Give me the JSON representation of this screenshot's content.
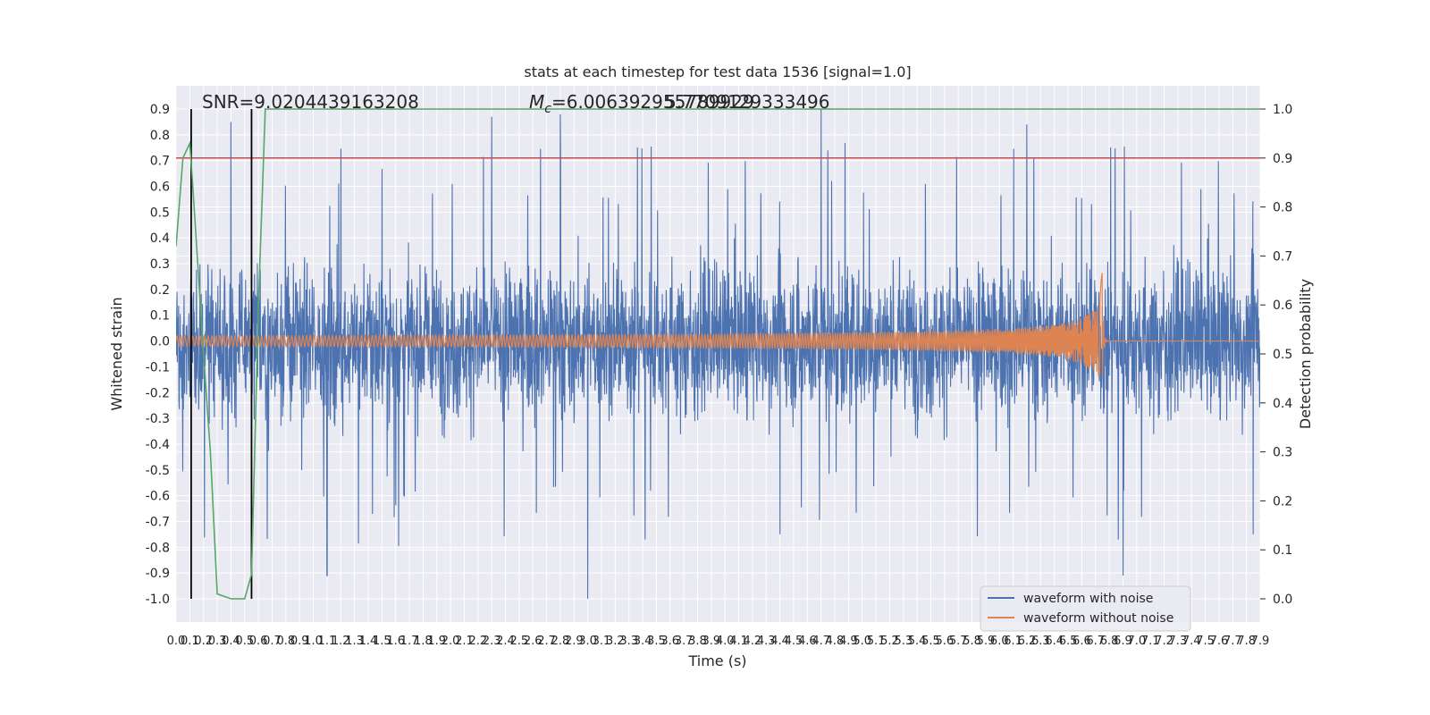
{
  "chart_data": {
    "type": "line",
    "title": "stats at each timestep for test data 1536 [signal=1.0]",
    "xlabel": "Time (s)",
    "ylabel_left": "Whitened strain",
    "ylabel_right": "Detection probability",
    "xlim": [
      0.0,
      7.9
    ],
    "ylim_left": [
      -1.0,
      0.9
    ],
    "ylim_right": [
      0.0,
      1.0
    ],
    "x_ticks": [
      "0.0",
      "0.1",
      "0.2",
      "0.3",
      "0.4",
      "0.5",
      "0.6",
      "0.7",
      "0.8",
      "0.9",
      "1.0",
      "1.1",
      "1.2",
      "1.3",
      "1.4",
      "1.5",
      "1.6",
      "1.7",
      "1.8",
      "1.9",
      "2.0",
      "2.1",
      "2.2",
      "2.3",
      "2.4",
      "2.5",
      "2.6",
      "2.7",
      "2.8",
      "2.9",
      "3.0",
      "3.1",
      "3.2",
      "3.3",
      "3.4",
      "3.5",
      "3.6",
      "3.7",
      "3.8",
      "3.9",
      "4.0",
      "4.1",
      "4.2",
      "4.3",
      "4.4",
      "4.5",
      "4.6",
      "4.7",
      "4.8",
      "4.9",
      "5.0",
      "5.1",
      "5.2",
      "5.3",
      "5.4",
      "5.5",
      "5.6",
      "5.7",
      "5.8",
      "5.9",
      "6.0",
      "6.1",
      "6.2",
      "6.3",
      "6.4",
      "6.5",
      "6.6",
      "6.7",
      "6.8",
      "6.9",
      "7.0",
      "7.1",
      "7.2",
      "7.3",
      "7.4",
      "7.5",
      "7.6",
      "7.7",
      "7.8",
      "7.9"
    ],
    "y_ticks_left": [
      "0.9",
      "0.8",
      "0.7",
      "0.6",
      "0.5",
      "0.4",
      "0.3",
      "0.2",
      "0.1",
      "0.0",
      "-0.1",
      "-0.2",
      "-0.3",
      "-0.4",
      "-0.5",
      "-0.6",
      "-0.7",
      "-0.8",
      "-0.9",
      "-1.0"
    ],
    "y_ticks_right": [
      "1.0",
      "0.9",
      "0.8",
      "0.7",
      "0.6",
      "0.5",
      "0.4",
      "0.3",
      "0.2",
      "0.1",
      "0.0"
    ],
    "annotations": {
      "snr": "SNR=9.0204439163208",
      "mc_prefix": "M",
      "mc_sub": "c",
      "mc_value": "=6.006392955789929",
      "mc_overlap": "5.7709129333496"
    },
    "legend": {
      "placement": "lower-right",
      "entries": [
        "waveform with noise",
        "waveform without noise"
      ]
    },
    "series": [
      {
        "name": "waveform with noise",
        "color": "#4c72b0",
        "axis": "left",
        "envelope": {
          "upper_typical": 0.45,
          "lower_typical": -0.45,
          "peaks": [
            {
              "x": 0.4,
              "y": 0.85
            },
            {
              "x": 2.3,
              "y": 0.87
            },
            {
              "x": 2.8,
              "y": 0.88
            },
            {
              "x": 4.7,
              "y": 0.9
            },
            {
              "x": 6.2,
              "y": 0.84
            },
            {
              "x": 3.0,
              "y": -1.0
            },
            {
              "x": 6.9,
              "y": -0.91
            },
            {
              "x": 1.1,
              "y": -0.91
            }
          ]
        }
      },
      {
        "name": "waveform without noise",
        "color": "#dd8452",
        "axis": "left",
        "chirp": {
          "start_amplitude": 0.02,
          "merger_time": 6.75,
          "merger_peak": 0.27,
          "merger_trough": -0.19,
          "post_merger_level": 0.0
        }
      },
      {
        "name": "",
        "color": "#55a868",
        "axis": "right",
        "x": [
          0.0,
          0.05,
          0.1,
          0.12,
          0.2,
          0.25,
          0.3,
          0.4,
          0.5,
          0.55,
          0.6,
          0.65,
          7.9
        ],
        "y": [
          0.72,
          0.9,
          0.93,
          0.85,
          0.5,
          0.3,
          0.01,
          0.0,
          0.0,
          0.05,
          0.6,
          1.0,
          1.0
        ]
      }
    ],
    "reference_lines": [
      {
        "type": "horizontal",
        "axis": "right",
        "value": 0.9,
        "color": "#c44e52"
      },
      {
        "type": "vertical",
        "value": 0.11,
        "color": "#000000"
      },
      {
        "type": "vertical",
        "value": 0.55,
        "color": "#000000"
      }
    ],
    "grid": true
  }
}
